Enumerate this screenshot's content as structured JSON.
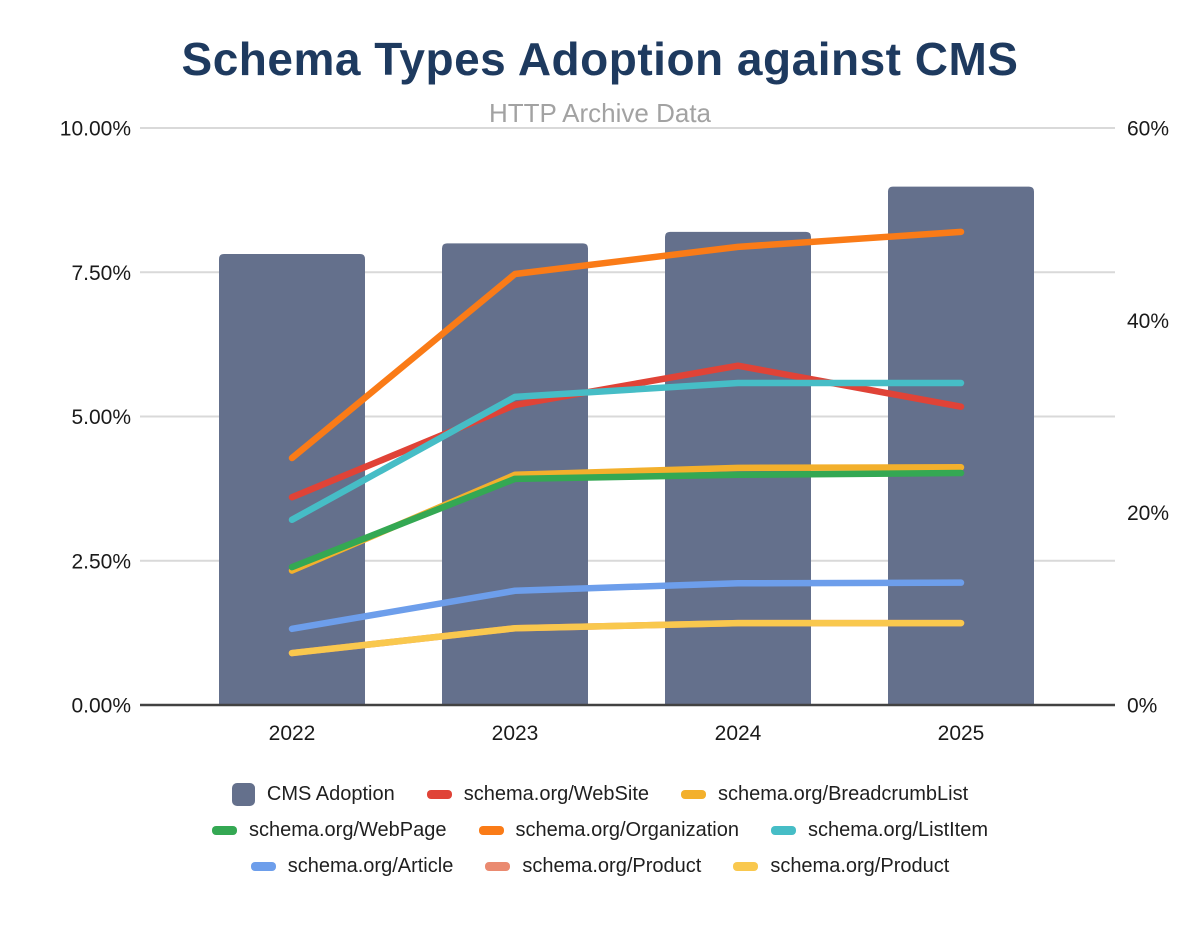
{
  "chart_data": {
    "type": "combo-bar-line",
    "title": "Schema Types Adoption against CMS",
    "subtitle": "HTTP Archive Data",
    "categories": [
      "2022",
      "2023",
      "2024",
      "2025"
    ],
    "left_axis": {
      "ticks": [
        {
          "value": 0,
          "label": "0.00%"
        },
        {
          "value": 2.5,
          "label": "2.50%"
        },
        {
          "value": 5,
          "label": "5.00%"
        },
        {
          "value": 7.5,
          "label": "7.50%"
        },
        {
          "value": 10,
          "label": "10.00%"
        }
      ],
      "max": 10
    },
    "right_axis": {
      "ticks": [
        {
          "value": 0,
          "label": "0%"
        },
        {
          "value": 20,
          "label": "20%"
        },
        {
          "value": 40,
          "label": "40%"
        },
        {
          "value": 60,
          "label": "60%"
        }
      ],
      "max": 60
    },
    "bar_series": {
      "name": "CMS Adoption",
      "axis": "right",
      "color": "#64708c",
      "values": [
        46.9,
        48.0,
        49.2,
        53.9
      ]
    },
    "line_series": [
      {
        "name": "schema.org/WebSite",
        "color": "#e04337",
        "values": [
          3.6,
          5.2,
          5.88,
          5.17
        ]
      },
      {
        "name": "schema.org/BreadcrumbList",
        "color": "#f3b02c",
        "values": [
          2.33,
          3.99,
          4.11,
          4.12
        ]
      },
      {
        "name": "schema.org/WebPage",
        "color": "#34a853",
        "values": [
          2.39,
          3.92,
          3.99,
          4.02
        ]
      },
      {
        "name": "schema.org/Organization",
        "color": "#fa7b17",
        "values": [
          4.28,
          7.47,
          7.94,
          8.2
        ]
      },
      {
        "name": "schema.org/ListItem",
        "color": "#46bdc6",
        "values": [
          3.21,
          5.34,
          5.58,
          5.58
        ]
      },
      {
        "name": "schema.org/Article",
        "color": "#6d9eeb",
        "values": [
          1.32,
          1.98,
          2.11,
          2.12
        ]
      },
      {
        "name": "schema.org/Product",
        "color": "#ea8a70",
        "values": [
          0.9,
          1.33,
          1.42,
          1.42
        ]
      },
      {
        "name": "schema.org/Product",
        "color": "#f9c84e",
        "values": [
          0.9,
          1.33,
          1.42,
          1.42
        ]
      }
    ],
    "legend_rows": [
      [
        {
          "label": "CMS Adoption",
          "color": "#64708c",
          "shape": "square"
        },
        {
          "label": "schema.org/WebSite",
          "color": "#e04337",
          "shape": "line"
        },
        {
          "label": "schema.org/BreadcrumbList",
          "color": "#f3b02c",
          "shape": "line"
        }
      ],
      [
        {
          "label": "schema.org/WebPage",
          "color": "#34a853",
          "shape": "line"
        },
        {
          "label": "schema.org/Organization",
          "color": "#fa7b17",
          "shape": "line"
        },
        {
          "label": "schema.org/ListItem",
          "color": "#46bdc6",
          "shape": "line"
        }
      ],
      [
        {
          "label": "schema.org/Article",
          "color": "#6d9eeb",
          "shape": "line"
        },
        {
          "label": "schema.org/Product",
          "color": "#ea8a70",
          "shape": "line"
        },
        {
          "label": "schema.org/Product",
          "color": "#f9c84e",
          "shape": "line"
        }
      ]
    ],
    "colors": {
      "title": "#1e3a5f",
      "subtitle": "#a2a2a2",
      "gridline": "#d9d9d9",
      "axis_line": "#424242",
      "tick_label": "#1a1a1a"
    },
    "legend_position": "bottom",
    "grid": "horizontal"
  }
}
